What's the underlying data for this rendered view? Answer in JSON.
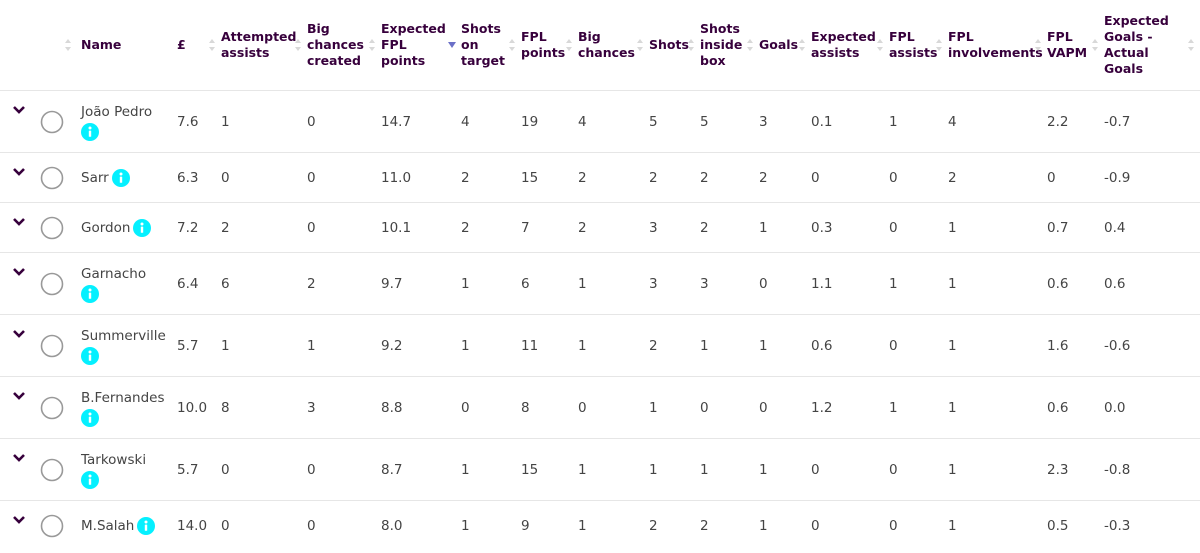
{
  "table": {
    "headers": [
      "Name",
      "£",
      "Attempted assists",
      "Big chances created",
      "Expected FPL points",
      "Shots on target",
      "FPL points",
      "Big chances",
      "Shots",
      "Shots inside box",
      "Goals",
      "Expected assists",
      "FPL assists",
      "FPL involvements",
      "FPL VAPM",
      "Expected Goals - Actual Goals"
    ],
    "rows": [
      [
        "João Pedro",
        "7.6",
        "1",
        "0",
        "14.7",
        "4",
        "19",
        "4",
        "5",
        "5",
        "3",
        "0.1",
        "1",
        "4",
        "2.2",
        "-0.7"
      ],
      [
        "Sarr",
        "6.3",
        "0",
        "0",
        "11.0",
        "2",
        "15",
        "2",
        "2",
        "2",
        "2",
        "0",
        "0",
        "2",
        "0",
        "-0.9"
      ],
      [
        "Gordon",
        "7.2",
        "2",
        "0",
        "10.1",
        "2",
        "7",
        "2",
        "3",
        "2",
        "1",
        "0.3",
        "0",
        "1",
        "0.7",
        "0.4"
      ],
      [
        "Garnacho",
        "6.4",
        "6",
        "2",
        "9.7",
        "1",
        "6",
        "1",
        "3",
        "3",
        "0",
        "1.1",
        "1",
        "1",
        "0.6",
        "0.6"
      ],
      [
        "Summerville",
        "5.7",
        "1",
        "1",
        "9.2",
        "1",
        "11",
        "1",
        "2",
        "1",
        "1",
        "0.6",
        "0",
        "1",
        "1.6",
        "-0.6"
      ],
      [
        "B.Fernandes",
        "10.0",
        "8",
        "3",
        "8.8",
        "0",
        "8",
        "0",
        "1",
        "0",
        "0",
        "1.2",
        "1",
        "1",
        "0.6",
        "0.0"
      ],
      [
        "Tarkowski",
        "5.7",
        "0",
        "0",
        "8.7",
        "1",
        "15",
        "1",
        "1",
        "1",
        "1",
        "0",
        "0",
        "1",
        "2.3",
        "-0.8"
      ],
      [
        "M.Salah",
        "14.0",
        "0",
        "0",
        "8.0",
        "1",
        "9",
        "1",
        "2",
        "2",
        "1",
        "0",
        "0",
        "1",
        "0.5",
        "-0.3"
      ]
    ]
  }
}
